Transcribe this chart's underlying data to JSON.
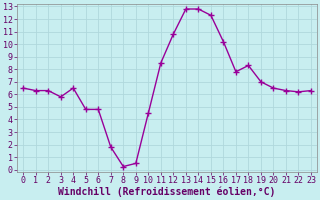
{
  "x": [
    0,
    1,
    2,
    3,
    4,
    5,
    6,
    7,
    8,
    9,
    10,
    11,
    12,
    13,
    14,
    15,
    16,
    17,
    18,
    19,
    20,
    21,
    22,
    23
  ],
  "y": [
    6.5,
    6.3,
    6.3,
    5.8,
    6.5,
    4.8,
    4.8,
    1.8,
    0.25,
    0.5,
    4.5,
    8.5,
    10.8,
    12.8,
    12.8,
    12.3,
    10.2,
    7.8,
    8.3,
    7.0,
    6.5,
    6.3,
    6.2,
    6.3
  ],
  "line_color": "#990099",
  "marker": "+",
  "marker_size": 4,
  "marker_linewidth": 1.0,
  "line_width": 1.0,
  "background_color": "#c8eef0",
  "grid_color": "#b0d8dc",
  "xlabel": "Windchill (Refroidissement éolien,°C)",
  "xlabel_fontsize": 7,
  "tick_fontsize": 6,
  "ylim": [
    -0.2,
    13.2
  ],
  "xlim": [
    -0.5,
    23.5
  ],
  "yticks": [
    0,
    1,
    2,
    3,
    4,
    5,
    6,
    7,
    8,
    9,
    10,
    11,
    12,
    13
  ],
  "xticks": [
    0,
    1,
    2,
    3,
    4,
    5,
    6,
    7,
    8,
    9,
    10,
    11,
    12,
    13,
    14,
    15,
    16,
    17,
    18,
    19,
    20,
    21,
    22,
    23
  ],
  "fig_width": 3.2,
  "fig_height": 2.0,
  "dpi": 100
}
